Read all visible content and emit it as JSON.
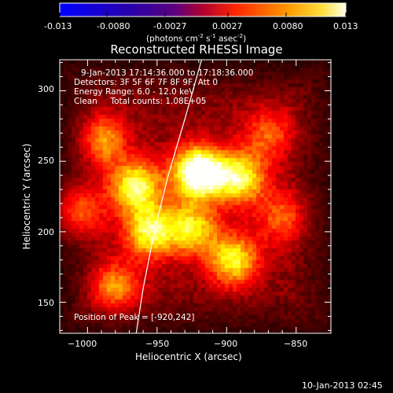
{
  "colorbar": {
    "ticks": [
      "-0.013",
      "-0.0080",
      "-0.0027",
      "0.0027",
      "0.0080",
      "0.013"
    ],
    "unit_prefix": "(photons cm",
    "unit_exp1": "-2",
    "unit_mid": " s",
    "unit_exp2": "-1",
    "unit_mid2": " asec",
    "unit_exp3": "-2",
    "unit_suffix": ")"
  },
  "chart_data": {
    "type": "heatmap",
    "title": "Reconstructed RHESSI Image",
    "xlabel": "Heliocentric X (arcsec)",
    "ylabel": "Heliocentric Y (arcsec)",
    "xlim": [
      -1020,
      -825
    ],
    "ylim": [
      128,
      322
    ],
    "xticks": [
      -1000,
      -950,
      -900,
      -850
    ],
    "yticks": [
      150,
      200,
      250,
      300
    ],
    "xtick_labels": [
      "−1000",
      "−950",
      "−900",
      "−850"
    ],
    "ytick_labels": [
      "150",
      "200",
      "250",
      "300"
    ],
    "colormap": "hot",
    "value_range": [
      -0.013,
      0.013
    ],
    "sources": [
      {
        "x": -920,
        "y": 242,
        "peak": 0.013
      },
      {
        "x": -965,
        "y": 232,
        "peak": 0.009
      },
      {
        "x": -1010,
        "y": 215,
        "peak": 0.008
      },
      {
        "x": -955,
        "y": 200,
        "peak": 0.0085
      },
      {
        "x": -925,
        "y": 202,
        "peak": 0.0075
      },
      {
        "x": -890,
        "y": 238,
        "peak": 0.0085
      },
      {
        "x": -895,
        "y": 180,
        "peak": 0.008
      },
      {
        "x": -990,
        "y": 265,
        "peak": 0.006
      },
      {
        "x": -870,
        "y": 270,
        "peak": 0.0045
      },
      {
        "x": -980,
        "y": 160,
        "peak": 0.006
      },
      {
        "x": -860,
        "y": 210,
        "peak": 0.0045
      }
    ],
    "annotations": [
      "9-Jan-2013 17:14:36.000 to 17:18:36.000",
      "Detectors: 3F 5F 6F 7F 8F 9F, Att 0",
      "Energy Range: 6.0 - 12.0 keV",
      "Clean     Total counts: 1.08E+05"
    ],
    "peak_label": "Position of Peak = [-920,242]",
    "limb_curve": [
      [
        -965,
        128
      ],
      [
        -960,
        160
      ],
      [
        -952,
        200
      ],
      [
        -942,
        240
      ],
      [
        -930,
        280
      ],
      [
        -918,
        322
      ]
    ]
  },
  "footer": {
    "timestamp": "10-Jan-2013 02:45"
  },
  "colors": {
    "background": "#000000",
    "text": "#ffffff"
  }
}
